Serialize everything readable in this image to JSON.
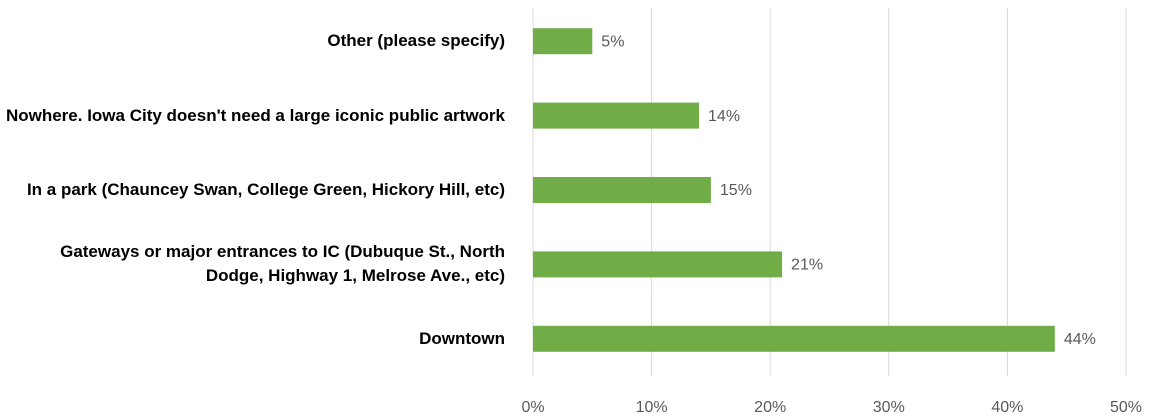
{
  "chart_data": {
    "type": "bar",
    "orientation": "horizontal",
    "categories": [
      "Other (please specify)",
      "Nowhere. Iowa City doesn't need a large iconic public artwork",
      "In a park (Chauncey Swan, College Green, Hickory Hill, etc)",
      "Gateways or major entrances to IC (Dubuque St., North Dodge, Highway 1, Melrose Ave., etc)",
      "Downtown"
    ],
    "values": [
      5,
      14,
      15,
      21,
      44
    ],
    "value_labels": [
      "5%",
      "14%",
      "15%",
      "21%",
      "44%"
    ],
    "color": "#70ad47",
    "xlim": [
      0,
      50
    ],
    "xticks": [
      {
        "value": 0,
        "label": "0%"
      },
      {
        "value": 10,
        "label": "10%"
      },
      {
        "value": 20,
        "label": "20%"
      },
      {
        "value": 30,
        "label": "30%"
      },
      {
        "value": 40,
        "label": "40%"
      },
      {
        "value": 50,
        "label": "50%"
      }
    ],
    "grid": true
  }
}
